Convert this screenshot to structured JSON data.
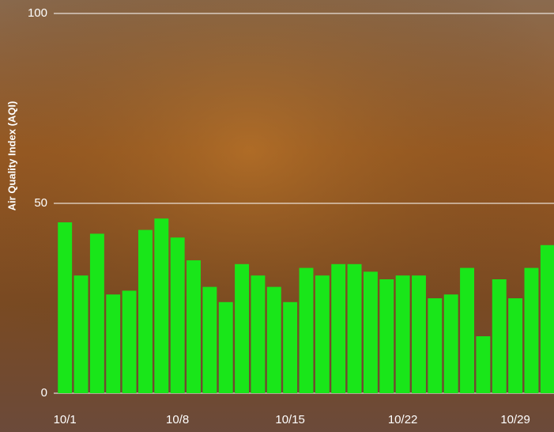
{
  "chart_data": {
    "type": "bar",
    "y_label": "Air Quality Index (AQI)",
    "categories": [
      "10/1",
      null,
      null,
      null,
      null,
      null,
      null,
      "10/8",
      null,
      null,
      null,
      null,
      null,
      null,
      "10/15",
      null,
      null,
      null,
      null,
      null,
      null,
      "10/22",
      null,
      null,
      null,
      null,
      null,
      null,
      "10/29",
      null,
      null
    ],
    "values": [
      45,
      31,
      42,
      26,
      27,
      43,
      46,
      41,
      35,
      28,
      24,
      34,
      31,
      28,
      24,
      33,
      31,
      34,
      34,
      32,
      30,
      31,
      31,
      25,
      26,
      33,
      15,
      30,
      25,
      33,
      39
    ],
    "color": "#19e619",
    "ylim": [
      0,
      100
    ],
    "yticks": [
      0,
      50,
      100
    ],
    "grid": true
  }
}
